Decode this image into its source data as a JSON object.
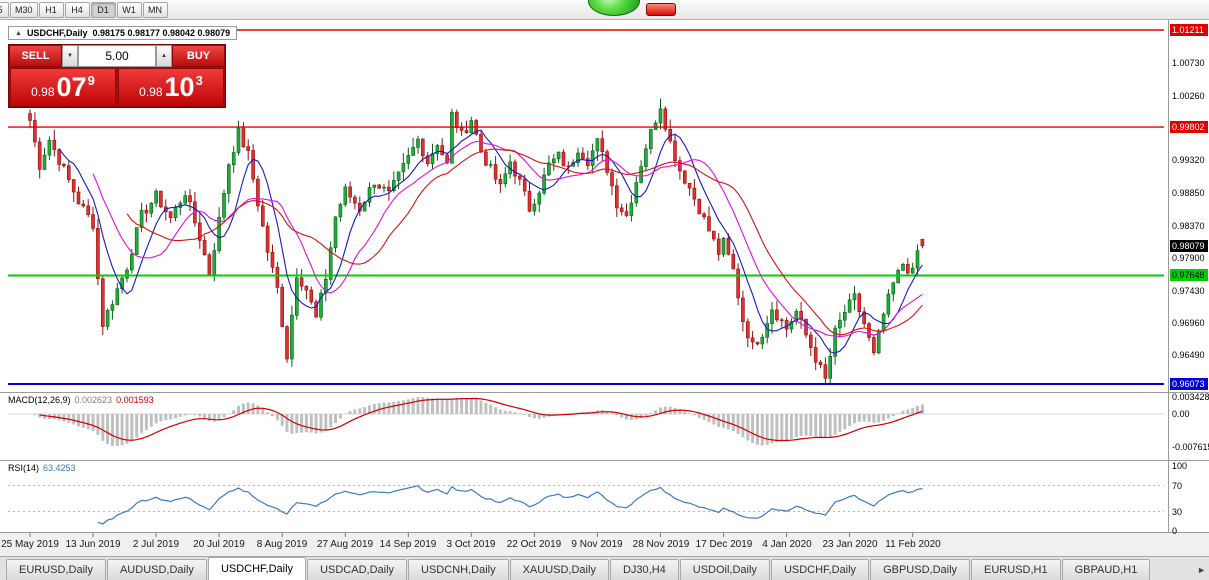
{
  "toolbar": {
    "timeframes": [
      "5",
      "M30",
      "H1",
      "H4",
      "D1",
      "W1",
      "MN"
    ],
    "active_timeframe": "D1"
  },
  "icons": {
    "collapse": "▲",
    "up_arrow": "▲",
    "down_arrow": "▼",
    "scroll_right": "►"
  },
  "chart": {
    "title": "USDCHF,Daily",
    "ohlc_text": "0.98175 0.98177 0.98042 0.98079"
  },
  "trade_panel": {
    "sell_label": "SELL",
    "buy_label": "BUY",
    "volume": "5.00",
    "sell_price": {
      "big_figure": "0.98",
      "pips": "07",
      "pipette": "9"
    },
    "buy_price": {
      "big_figure": "0.98",
      "pips": "10",
      "pipette": "3"
    }
  },
  "price_axis": {
    "labels": [
      {
        "text": "1.01211",
        "price": 1.01211,
        "bg": "#e40000",
        "fg": "#ffffff"
      },
      {
        "text": "1.00730",
        "price": 1.0073
      },
      {
        "text": "1.00260",
        "price": 1.0026
      },
      {
        "text": "0.99802",
        "price": 0.99802,
        "bg": "#e40000",
        "fg": "#ffffff"
      },
      {
        "text": "0.99320",
        "price": 0.9932
      },
      {
        "text": "0.98850",
        "price": 0.9885
      },
      {
        "text": "0.98370",
        "price": 0.9837
      },
      {
        "text": "0.98079",
        "price": 0.98079,
        "bg": "#000000",
        "fg": "#ffffff"
      },
      {
        "text": "0.97900",
        "price": 0.979
      },
      {
        "text": "0.97648",
        "price": 0.97648,
        "bg": "#00cc00",
        "fg": "#000000"
      },
      {
        "text": "0.97430",
        "price": 0.9743
      },
      {
        "text": "0.96960",
        "price": 0.9696
      },
      {
        "text": "0.96490",
        "price": 0.9649
      },
      {
        "text": "0.96073",
        "price": 0.96073,
        "bg": "#0000d8",
        "fg": "#ffffff"
      }
    ]
  },
  "macd": {
    "label": "MACD(12,26,9)",
    "value": "0.002623",
    "signal_value": "0.001593",
    "axis_max": "0.003428",
    "axis_zero": "0.00",
    "axis_min": "-0.007615"
  },
  "rsi": {
    "label": "RSI(14)",
    "value": "63.4253",
    "axis_levels": [
      100,
      70,
      30,
      0
    ],
    "dashed_levels": [
      70,
      30
    ]
  },
  "tabs": {
    "items": [
      "EURUSD,Daily",
      "AUDUSD,Daily",
      "USDCHF,Daily",
      "USDCAD,Daily",
      "USDCNH,Daily",
      "XAUUSD,Daily",
      "DJ30,H4",
      "USDOil,Daily",
      "USDCHF,Daily",
      "GBPUSD,Daily",
      "EURUSD,H1",
      "GBPAUD,H1"
    ],
    "active_index": 2
  },
  "chart_data": {
    "type": "candlestick",
    "symbol": "USDCHF",
    "period": "Daily",
    "bars": 185,
    "price_range": {
      "top": 1.01211,
      "bottom": 0.96073
    },
    "last_candle": {
      "open": 0.98175,
      "high": 0.98177,
      "low": 0.98042,
      "close": 0.98079
    },
    "hlines": [
      {
        "price": 1.01211,
        "color": "#ee0000",
        "width": 1.4
      },
      {
        "price": 0.99802,
        "color": "#ee0000",
        "width": 1.4
      },
      {
        "price": 0.97648,
        "color": "#00d000",
        "width": 2
      },
      {
        "price": 0.96073,
        "color": "#0000dd",
        "width": 2
      }
    ],
    "colors": {
      "up": "#1fae3a",
      "up_edge": "#0a5c18",
      "down": "#e03030",
      "down_edge": "#8f0f0f"
    },
    "moving_averages": [
      {
        "name": "fast",
        "period": 7,
        "color": "#1818c8"
      },
      {
        "name": "mid",
        "period": 14,
        "color": "#e012e0"
      },
      {
        "name": "slow",
        "period": 21,
        "color": "#d41414"
      }
    ],
    "indicator_colors": {
      "macd_hist": "#c0c0c0",
      "macd_signal": "#d00000",
      "rsi": "#3c78c8"
    },
    "date_ticks": [
      {
        "label": "25 May 2019",
        "bar": 0
      },
      {
        "label": "13 Jun 2019",
        "bar": 13
      },
      {
        "label": "2 Jul 2019",
        "bar": 26
      },
      {
        "label": "20 Jul 2019",
        "bar": 39
      },
      {
        "label": "8 Aug 2019",
        "bar": 52
      },
      {
        "label": "27 Aug 2019",
        "bar": 65
      },
      {
        "label": "14 Sep 2019",
        "bar": 78
      },
      {
        "label": "3 Oct 2019",
        "bar": 91
      },
      {
        "label": "22 Oct 2019",
        "bar": 104
      },
      {
        "label": "9 Nov 2019",
        "bar": 117
      },
      {
        "label": "28 Nov 2019",
        "bar": 130
      },
      {
        "label": "17 Dec 2019",
        "bar": 143
      },
      {
        "label": "4 Jan 2020",
        "bar": 156
      },
      {
        "label": "23 Jan 2020",
        "bar": 169
      },
      {
        "label": "11 Feb 2020",
        "bar": 182
      }
    ],
    "close_anchors": [
      [
        0,
        0.999
      ],
      [
        2,
        0.9925
      ],
      [
        4,
        0.9962
      ],
      [
        7,
        0.9918
      ],
      [
        10,
        0.9872
      ],
      [
        13,
        0.984
      ],
      [
        14,
        0.976
      ],
      [
        15,
        0.9695
      ],
      [
        17,
        0.9728
      ],
      [
        20,
        0.9778
      ],
      [
        23,
        0.9852
      ],
      [
        26,
        0.988
      ],
      [
        29,
        0.9848
      ],
      [
        32,
        0.9886
      ],
      [
        35,
        0.982
      ],
      [
        37,
        0.9768
      ],
      [
        39,
        0.9845
      ],
      [
        41,
        0.9928
      ],
      [
        43,
        0.9972
      ],
      [
        45,
        0.994
      ],
      [
        47,
        0.987
      ],
      [
        49,
        0.98
      ],
      [
        51,
        0.9745
      ],
      [
        53,
        0.9648
      ],
      [
        55,
        0.9768
      ],
      [
        57,
        0.9745
      ],
      [
        59,
        0.9702
      ],
      [
        61,
        0.9762
      ],
      [
        63,
        0.985
      ],
      [
        65,
        0.9888
      ],
      [
        68,
        0.9862
      ],
      [
        71,
        0.9902
      ],
      [
        74,
        0.9882
      ],
      [
        78,
        0.9935
      ],
      [
        80,
        0.9962
      ],
      [
        82,
        0.993
      ],
      [
        84,
        0.9958
      ],
      [
        86,
        0.9925
      ],
      [
        87,
        0.9998
      ],
      [
        89,
        0.9968
      ],
      [
        91,
        0.9992
      ],
      [
        93,
        0.9945
      ],
      [
        95,
        0.9918
      ],
      [
        97,
        0.9892
      ],
      [
        99,
        0.993
      ],
      [
        101,
        0.99
      ],
      [
        103,
        0.9862
      ],
      [
        105,
        0.989
      ],
      [
        107,
        0.9925
      ],
      [
        109,
        0.9938
      ],
      [
        111,
        0.9918
      ],
      [
        113,
        0.995
      ],
      [
        115,
        0.9932
      ],
      [
        117,
        0.9958
      ],
      [
        119,
        0.992
      ],
      [
        121,
        0.987
      ],
      [
        123,
        0.9852
      ],
      [
        125,
        0.9902
      ],
      [
        127,
        0.9952
      ],
      [
        129,
        0.9992
      ],
      [
        130,
        1.0012
      ],
      [
        132,
        0.9958
      ],
      [
        134,
        0.9918
      ],
      [
        136,
        0.9892
      ],
      [
        138,
        0.9862
      ],
      [
        140,
        0.983
      ],
      [
        142,
        0.9798
      ],
      [
        143,
        0.9812
      ],
      [
        145,
        0.9772
      ],
      [
        147,
        0.97
      ],
      [
        149,
        0.9662
      ],
      [
        151,
        0.9682
      ],
      [
        153,
        0.9718
      ],
      [
        155,
        0.9698
      ],
      [
        156,
        0.9688
      ],
      [
        158,
        0.9712
      ],
      [
        160,
        0.9678
      ],
      [
        162,
        0.9645
      ],
      [
        164,
        0.9613
      ],
      [
        166,
        0.9682
      ],
      [
        168,
        0.9712
      ],
      [
        170,
        0.9732
      ],
      [
        172,
        0.9695
      ],
      [
        174,
        0.9648
      ],
      [
        176,
        0.9708
      ],
      [
        178,
        0.9752
      ],
      [
        180,
        0.9782
      ],
      [
        182,
        0.9768
      ],
      [
        183,
        0.98
      ],
      [
        184,
        0.98079
      ]
    ]
  }
}
